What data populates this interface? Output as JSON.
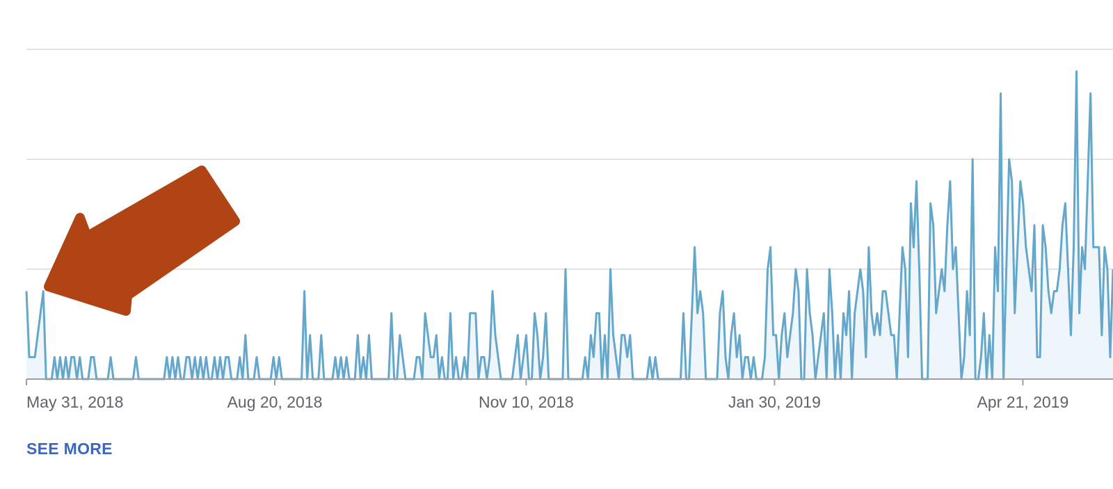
{
  "colors": {
    "line": "#64a7cb",
    "area": "#eef5fb",
    "grid": "#e4e4e4",
    "axis": "#9e9e9e",
    "arrow": "#b04414",
    "link": "#3a66c4"
  },
  "see_more": {
    "label": "SEE MORE"
  },
  "chart_data": {
    "type": "area",
    "title": "",
    "xlabel": "",
    "ylabel": "",
    "grid": true,
    "y_gridlines": [
      1,
      2,
      3
    ],
    "ylim": [
      0,
      3.2
    ],
    "x_ticks": [
      {
        "date": "2018-05-31",
        "label": "May 31, 2018"
      },
      {
        "date": "2018-08-20",
        "label": "Aug 20, 2018"
      },
      {
        "date": "2018-11-10",
        "label": "Nov 10, 2018"
      },
      {
        "date": "2019-01-30",
        "label": "Jan 30, 2019"
      },
      {
        "date": "2019-04-21",
        "label": "Apr 21, 2019"
      }
    ],
    "x_start": "2018-05-31",
    "x_end": "2019-05-06",
    "series": [
      {
        "values": [
          0.8,
          0.2,
          0.2,
          0.2,
          0.4,
          0.6,
          0.8,
          0.0,
          0.0,
          0.0,
          0.2,
          0.0,
          0.2,
          0.0,
          0.2,
          0.0,
          0.2,
          0.2,
          0.0,
          0.2,
          0.0,
          0.0,
          0.0,
          0.2,
          0.2,
          0.0,
          0.0,
          0.0,
          0.0,
          0.0,
          0.2,
          0.0,
          0.0,
          0.0,
          0.0,
          0.0,
          0.0,
          0.0,
          0.0,
          0.2,
          0.0,
          0.0,
          0.0,
          0.0,
          0.0,
          0.0,
          0.0,
          0.0,
          0.0,
          0.0,
          0.2,
          0.0,
          0.2,
          0.0,
          0.2,
          0.0,
          0.0,
          0.2,
          0.2,
          0.0,
          0.2,
          0.0,
          0.2,
          0.0,
          0.2,
          0.0,
          0.0,
          0.2,
          0.0,
          0.2,
          0.0,
          0.2,
          0.2,
          0.0,
          0.0,
          0.0,
          0.2,
          0.0,
          0.4,
          0.0,
          0.0,
          0.0,
          0.2,
          0.0,
          0.0,
          0.0,
          0.0,
          0.0,
          0.2,
          0.0,
          0.2,
          0.0,
          0.0,
          0.0,
          0.0,
          0.0,
          0.0,
          0.0,
          0.0,
          0.8,
          0.0,
          0.4,
          0.0,
          0.0,
          0.0,
          0.4,
          0.0,
          0.0,
          0.0,
          0.0,
          0.2,
          0.0,
          0.2,
          0.0,
          0.2,
          0.0,
          0.0,
          0.0,
          0.4,
          0.0,
          0.2,
          0.0,
          0.4,
          0.0,
          0.0,
          0.0,
          0.0,
          0.0,
          0.0,
          0.0,
          0.6,
          0.0,
          0.0,
          0.4,
          0.2,
          0.0,
          0.0,
          0.0,
          0.0,
          0.2,
          0.2,
          0.0,
          0.6,
          0.4,
          0.2,
          0.2,
          0.4,
          0.0,
          0.2,
          0.0,
          0.0,
          0.6,
          0.0,
          0.2,
          0.0,
          0.0,
          0.2,
          0.0,
          0.6,
          0.6,
          0.6,
          0.0,
          0.2,
          0.2,
          0.0,
          0.2,
          0.8,
          0.4,
          0.2,
          0.0,
          0.0,
          0.0,
          0.0,
          0.0,
          0.2,
          0.4,
          0.0,
          0.2,
          0.4,
          0.0,
          0.0,
          0.6,
          0.4,
          0.0,
          0.2,
          0.6,
          0.0,
          0.0,
          0.0,
          0.0,
          0.0,
          0.0,
          1.0,
          0.0,
          0.0,
          0.0,
          0.0,
          0.0,
          0.0,
          0.2,
          0.0,
          0.4,
          0.2,
          0.6,
          0.6,
          0.0,
          0.4,
          0.0,
          1.0,
          0.4,
          0.2,
          0.0,
          0.4,
          0.4,
          0.2,
          0.4,
          0.0,
          0.0,
          0.0,
          0.0,
          0.0,
          0.0,
          0.2,
          0.0,
          0.2,
          0.0,
          0.0,
          0.0,
          0.0,
          0.0,
          0.0,
          0.0,
          0.0,
          0.0,
          0.6,
          0.0,
          0.0,
          0.6,
          1.2,
          0.6,
          0.8,
          0.6,
          0.0,
          0.0,
          0.0,
          0.0,
          0.0,
          0.6,
          0.8,
          0.2,
          0.0,
          0.4,
          0.6,
          0.2,
          0.4,
          0.0,
          0.2,
          0.2,
          0.0,
          0.2,
          0.0,
          0.0,
          0.0,
          0.2,
          1.0,
          1.2,
          0.4,
          0.4,
          0.0,
          0.4,
          0.6,
          0.2,
          0.4,
          0.6,
          1.0,
          0.8,
          0.0,
          0.0,
          1.0,
          0.6,
          0.4,
          0.0,
          0.2,
          0.4,
          0.6,
          0.0,
          1.0,
          0.6,
          0.0,
          0.4,
          0.0,
          0.6,
          0.4,
          0.8,
          0.0,
          0.6,
          0.8,
          1.0,
          0.8,
          0.2,
          1.2,
          0.6,
          0.4,
          0.6,
          0.4,
          0.8,
          0.8,
          0.6,
          0.4,
          0.4,
          0.0,
          0.6,
          1.2,
          1.0,
          0.2,
          1.6,
          1.2,
          1.8,
          1.0,
          0.0,
          0.0,
          0.0,
          1.6,
          1.4,
          0.6,
          0.8,
          1.0,
          0.8,
          1.4,
          1.8,
          1.0,
          1.2,
          0.6,
          0.0,
          0.2,
          0.8,
          0.4,
          2.0,
          0.0,
          0.0,
          0.2,
          0.6,
          0.0,
          0.4,
          0.0,
          1.2,
          0.8,
          2.6,
          0.0,
          1.0,
          2.0,
          1.8,
          0.6,
          1.2,
          1.8,
          1.6,
          1.2,
          1.0,
          0.8,
          1.4,
          0.2,
          0.2,
          1.4,
          1.2,
          0.8,
          0.6,
          0.8,
          0.8,
          1.0,
          1.4,
          1.6,
          1.0,
          0.4,
          1.2,
          2.8,
          0.6,
          1.2,
          1.0,
          1.8,
          2.6,
          1.2,
          1.2,
          1.2,
          0.4,
          1.2,
          1.0,
          0.2,
          1.0
        ]
      }
    ],
    "annotations": [
      {
        "type": "arrow",
        "direction": "down-left",
        "points_to": "2018-05-31"
      }
    ]
  }
}
